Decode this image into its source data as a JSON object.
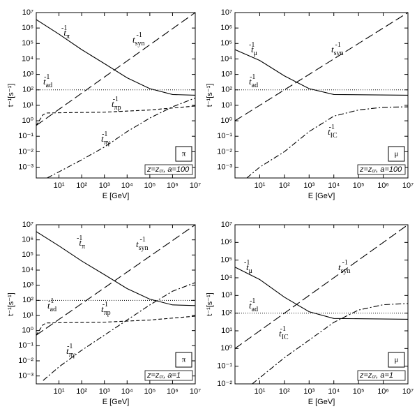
{
  "chart_data": [
    {
      "type": "line",
      "xlog": true,
      "ylog": true,
      "xlabel": "E [GeV]",
      "ylabel": "t⁻¹[s⁻¹]",
      "particle": "π",
      "note": [
        "z=z",
        "cr",
        ", a=100"
      ],
      "xlim": [
        1,
        10000000
      ],
      "ylim": [
        0.0002,
        10000000
      ],
      "xticks": [
        {
          "value": 10,
          "label": "10¹"
        },
        {
          "value": 100,
          "label": "10²"
        },
        {
          "value": 1000,
          "label": "10³"
        },
        {
          "value": 10000,
          "label": "10⁴"
        },
        {
          "value": 100000,
          "label": "10⁵"
        },
        {
          "value": 1000000,
          "label": "10⁶"
        },
        {
          "value": 10000000,
          "label": "10⁷"
        }
      ],
      "yticks": [
        {
          "value": 0.001,
          "label": "10⁻³"
        },
        {
          "value": 0.01,
          "label": "10⁻²"
        },
        {
          "value": 0.1,
          "label": "10⁻¹"
        },
        {
          "value": 1,
          "label": "10⁰"
        },
        {
          "value": 10,
          "label": "10¹"
        },
        {
          "value": 100,
          "label": "10²"
        },
        {
          "value": 1000,
          "label": "10³"
        },
        {
          "value": 10000,
          "label": "10⁴"
        },
        {
          "value": 100000,
          "label": "10⁵"
        },
        {
          "value": 1000000,
          "label": "10⁶"
        },
        {
          "value": 10000000,
          "label": "10⁷"
        }
      ],
      "series": [
        {
          "name": "t",
          "sub": "π",
          "sup": "-1",
          "dash": "solid",
          "color": "#000000",
          "x": [
            1,
            10,
            100,
            1000,
            10000,
            100000,
            1000000,
            10000000
          ],
          "values": [
            3500000,
            400000,
            40000,
            5000,
            600,
            120,
            50,
            45
          ]
        },
        {
          "name": "t",
          "sub": "syn",
          "sup": "-1",
          "dash": "long-dash",
          "color": "#000000",
          "x": [
            1,
            10000000
          ],
          "values": [
            0.5,
            10000000
          ]
        },
        {
          "name": "t",
          "sub": "ad",
          "sup": "-1",
          "dash": "dot",
          "color": "#000000",
          "x": [
            1,
            10000000
          ],
          "values": [
            100,
            100
          ]
        },
        {
          "name": "t",
          "sub": "πp",
          "sup": "-1",
          "dash": "short-dash",
          "color": "#000000",
          "x": [
            1,
            2,
            3,
            10,
            1000,
            100000,
            10000000
          ],
          "values": [
            0.5,
            2.5,
            3.2,
            3.3,
            3.6,
            5,
            9
          ]
        },
        {
          "name": "t",
          "sub": "πγ",
          "sup": "-1",
          "dash": "dash-dot",
          "color": "#000000",
          "x": [
            3,
            10,
            100,
            1000,
            10000,
            100000,
            1000000,
            10000000
          ],
          "values": [
            0.0002,
            0.0005,
            0.003,
            0.02,
            0.2,
            1.5,
            8,
            30
          ]
        }
      ]
    },
    {
      "type": "line",
      "xlog": true,
      "ylog": true,
      "xlabel": "E [GeV]",
      "ylabel": "t⁻¹[s⁻¹]",
      "particle": "μ",
      "note": [
        "z=z",
        "cr",
        ", a=100"
      ],
      "xlim": [
        1,
        10000000
      ],
      "ylim": [
        0.0002,
        10000000
      ],
      "xticks": [
        {
          "value": 10,
          "label": "10¹"
        },
        {
          "value": 100,
          "label": "10²"
        },
        {
          "value": 1000,
          "label": "10³"
        },
        {
          "value": 10000,
          "label": "10⁴"
        },
        {
          "value": 100000,
          "label": "10⁵"
        },
        {
          "value": 1000000,
          "label": "10⁶"
        },
        {
          "value": 10000000,
          "label": "10⁷"
        }
      ],
      "yticks": [
        {
          "value": 0.001,
          "label": "10⁻³"
        },
        {
          "value": 0.01,
          "label": "10⁻²"
        },
        {
          "value": 0.1,
          "label": "10⁻¹"
        },
        {
          "value": 1,
          "label": "10⁰"
        },
        {
          "value": 10,
          "label": "10¹"
        },
        {
          "value": 100,
          "label": "10²"
        },
        {
          "value": 1000,
          "label": "10³"
        },
        {
          "value": 10000,
          "label": "10⁴"
        },
        {
          "value": 100000,
          "label": "10⁵"
        },
        {
          "value": 1000000,
          "label": "10⁶"
        },
        {
          "value": 10000000,
          "label": "10⁷"
        }
      ],
      "series": [
        {
          "name": "t",
          "sub": "μ",
          "sup": "-1",
          "dash": "solid",
          "color": "#000000",
          "x": [
            1,
            10,
            100,
            1000,
            10000,
            10000000
          ],
          "values": [
            40000,
            8000,
            800,
            120,
            50,
            45
          ]
        },
        {
          "name": "t",
          "sub": "syn",
          "sup": "-1",
          "dash": "long-dash",
          "color": "#000000",
          "x": [
            1,
            10000000
          ],
          "values": [
            1,
            10000000
          ]
        },
        {
          "name": "t",
          "sub": "ad",
          "sup": "-1",
          "dash": "dot",
          "color": "#000000",
          "x": [
            1,
            10000000
          ],
          "values": [
            100,
            100
          ]
        },
        {
          "name": "t",
          "sub": "IC",
          "sup": "-1",
          "dash": "dash-dot",
          "color": "#000000",
          "x": [
            3,
            10,
            100,
            1000,
            10000,
            100000,
            1000000,
            10000000
          ],
          "values": [
            0.0002,
            0.001,
            0.01,
            0.2,
            2,
            5,
            7.5,
            8
          ]
        }
      ]
    },
    {
      "type": "line",
      "xlog": true,
      "ylog": true,
      "xlabel": "E [GeV]",
      "ylabel": "t⁻¹[s⁻¹]",
      "particle": "π",
      "note": [
        "z=z",
        "cr",
        ", a=1"
      ],
      "xlim": [
        1,
        10000000
      ],
      "ylim": [
        0.0003,
        10000000
      ],
      "xticks": [
        {
          "value": 10,
          "label": "10¹"
        },
        {
          "value": 100,
          "label": "10²"
        },
        {
          "value": 1000,
          "label": "10³"
        },
        {
          "value": 10000,
          "label": "10⁴"
        },
        {
          "value": 100000,
          "label": "10⁵"
        },
        {
          "value": 1000000,
          "label": "10⁶"
        },
        {
          "value": 10000000,
          "label": "10⁷"
        }
      ],
      "yticks": [
        {
          "value": 0.001,
          "label": "10⁻³"
        },
        {
          "value": 0.01,
          "label": "10⁻²"
        },
        {
          "value": 0.1,
          "label": "10⁻¹"
        },
        {
          "value": 1,
          "label": "10⁰"
        },
        {
          "value": 10,
          "label": "10¹"
        },
        {
          "value": 100,
          "label": "10²"
        },
        {
          "value": 1000,
          "label": "10³"
        },
        {
          "value": 10000,
          "label": "10⁴"
        },
        {
          "value": 100000,
          "label": "10⁵"
        },
        {
          "value": 1000000,
          "label": "10⁶"
        },
        {
          "value": 10000000,
          "label": "10⁷"
        }
      ],
      "series": [
        {
          "name": "t",
          "sub": "π",
          "sup": "-1",
          "dash": "solid",
          "color": "#000000",
          "x": [
            1,
            10,
            100,
            1000,
            10000,
            100000,
            1000000,
            10000000
          ],
          "values": [
            3500000,
            400000,
            40000,
            5000,
            600,
            120,
            50,
            45
          ]
        },
        {
          "name": "t",
          "sub": "syn",
          "sup": "-1",
          "dash": "long-dash",
          "color": "#000000",
          "x": [
            1,
            10000000
          ],
          "values": [
            0.5,
            10000000
          ]
        },
        {
          "name": "t",
          "sub": "ad",
          "sup": "-1",
          "dash": "dot",
          "color": "#000000",
          "x": [
            1,
            10000000
          ],
          "values": [
            100,
            100
          ]
        },
        {
          "name": "t",
          "sub": "πp",
          "sup": "-1",
          "dash": "short-dash",
          "color": "#000000",
          "x": [
            1,
            2,
            3,
            10,
            1000,
            100000,
            10000000
          ],
          "values": [
            0.5,
            2.5,
            3.2,
            3.3,
            3.6,
            5,
            9
          ]
        },
        {
          "name": "t",
          "sub": "πγ",
          "sup": "-1",
          "dash": "dash-dot",
          "color": "#000000",
          "x": [
            2,
            10,
            100,
            1000,
            10000,
            100000,
            1000000,
            10000000
          ],
          "values": [
            0.0005,
            0.004,
            0.05,
            0.5,
            5,
            50,
            400,
            1500
          ]
        }
      ]
    },
    {
      "type": "line",
      "xlog": true,
      "ylog": true,
      "xlabel": "E [GeV]",
      "ylabel": "t⁻¹[s⁻¹]",
      "particle": "μ",
      "note": [
        "z=z",
        "cr",
        ", a=1"
      ],
      "xlim": [
        1,
        10000000
      ],
      "ylim": [
        0.01,
        10000000
      ],
      "xticks": [
        {
          "value": 10,
          "label": "10¹"
        },
        {
          "value": 100,
          "label": "10²"
        },
        {
          "value": 1000,
          "label": "10³"
        },
        {
          "value": 10000,
          "label": "10⁴"
        },
        {
          "value": 100000,
          "label": "10⁵"
        },
        {
          "value": 1000000,
          "label": "10⁶"
        },
        {
          "value": 10000000,
          "label": "10⁷"
        }
      ],
      "yticks": [
        {
          "value": 0.01,
          "label": "10⁻²"
        },
        {
          "value": 0.1,
          "label": "10⁻¹"
        },
        {
          "value": 1,
          "label": "10⁰"
        },
        {
          "value": 10,
          "label": "10¹"
        },
        {
          "value": 100,
          "label": "10²"
        },
        {
          "value": 1000,
          "label": "10³"
        },
        {
          "value": 10000,
          "label": "10⁴"
        },
        {
          "value": 100000,
          "label": "10⁵"
        },
        {
          "value": 1000000,
          "label": "10⁶"
        },
        {
          "value": 10000000,
          "label": "10⁷"
        }
      ],
      "series": [
        {
          "name": "t",
          "sub": "μ",
          "sup": "-1",
          "dash": "solid",
          "color": "#000000",
          "x": [
            1,
            10,
            100,
            1000,
            10000,
            10000000
          ],
          "values": [
            40000,
            8000,
            800,
            120,
            50,
            45
          ]
        },
        {
          "name": "t",
          "sub": "syn",
          "sup": "-1",
          "dash": "long-dash",
          "color": "#000000",
          "x": [
            1,
            10000000
          ],
          "values": [
            1,
            10000000
          ]
        },
        {
          "name": "t",
          "sub": "ad",
          "sup": "-1",
          "dash": "dot",
          "color": "#000000",
          "x": [
            1,
            10000000
          ],
          "values": [
            100,
            100
          ]
        },
        {
          "name": "t",
          "sub": "IC",
          "sup": "-1",
          "dash": "dash-dot",
          "color": "#000000",
          "x": [
            5,
            100,
            1000,
            10000,
            100000,
            1000000,
            10000000
          ],
          "values": [
            0.01,
            0.3,
            3,
            30,
            150,
            300,
            350
          ]
        }
      ]
    }
  ]
}
